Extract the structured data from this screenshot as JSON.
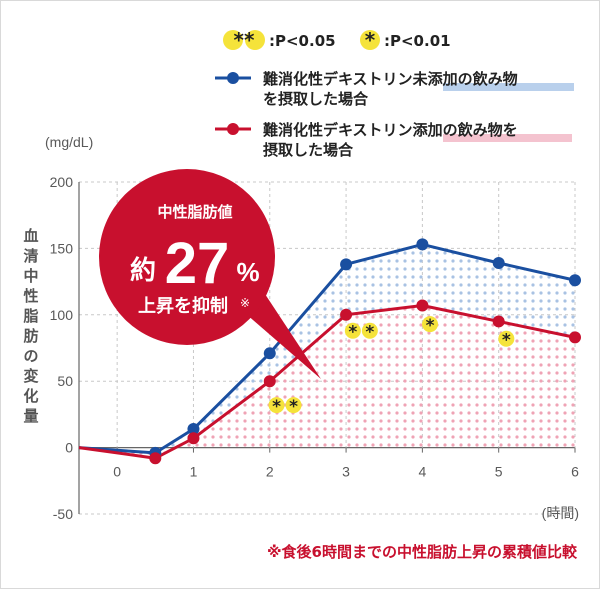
{
  "sig_legend": {
    "double_star": "**",
    "double_label": ":P<0.05",
    "single_star": "*",
    "single_label": ":P<0.01"
  },
  "unit_label": "(mg/dL)",
  "y_axis_label": "血清中性脂肪の変化量",
  "x_unit_label": "(時間)",
  "callout": {
    "top": "中性脂肪値",
    "prefix": "約",
    "number": "27",
    "percent": "%",
    "bottom": "上昇を抑制",
    "mark": "※"
  },
  "footnote": "※食後6時間までの中性脂肪上昇の累積値比較",
  "colors": {
    "blue": "#1a4fa0",
    "red": "#c8102e",
    "blue_dots": "#a9c2e3",
    "red_dots": "#efa3b5",
    "sig_circle": "#f5e33a",
    "underline_blue": "#b9d0ec",
    "underline_red": "#f4c3cf"
  },
  "chart_data": {
    "type": "line",
    "x": [
      -0.5,
      0.5,
      1,
      2,
      3,
      4,
      5,
      6
    ],
    "xticks": [
      "0",
      "1",
      "2",
      "3",
      "4",
      "5",
      "6"
    ],
    "yticks": [
      "200",
      "150",
      "100",
      "50",
      "0",
      "-50"
    ],
    "xlim": [
      -0.5,
      6
    ],
    "ylim": [
      -50,
      200
    ],
    "grid": true,
    "series": [
      {
        "name_parts": [
          "難消化性デキストリン",
          "未添加の飲み物",
          "を摂取した場合"
        ],
        "color": "blue",
        "values": [
          0,
          -4,
          14,
          71,
          138,
          153,
          139,
          126
        ]
      },
      {
        "name_parts": [
          "難消化性デキストリン",
          "添加の飲み物を",
          "摂取した場合"
        ],
        "color": "red",
        "values": [
          0,
          -8,
          7,
          50,
          100,
          107,
          95,
          83
        ]
      }
    ],
    "significance": [
      {
        "x": 2.2,
        "y": 32,
        "marks": "**"
      },
      {
        "x": 3.2,
        "y": 88,
        "marks": "**"
      },
      {
        "x": 4.1,
        "y": 93,
        "marks": "*"
      },
      {
        "x": 5.1,
        "y": 82,
        "marks": "*"
      }
    ]
  }
}
